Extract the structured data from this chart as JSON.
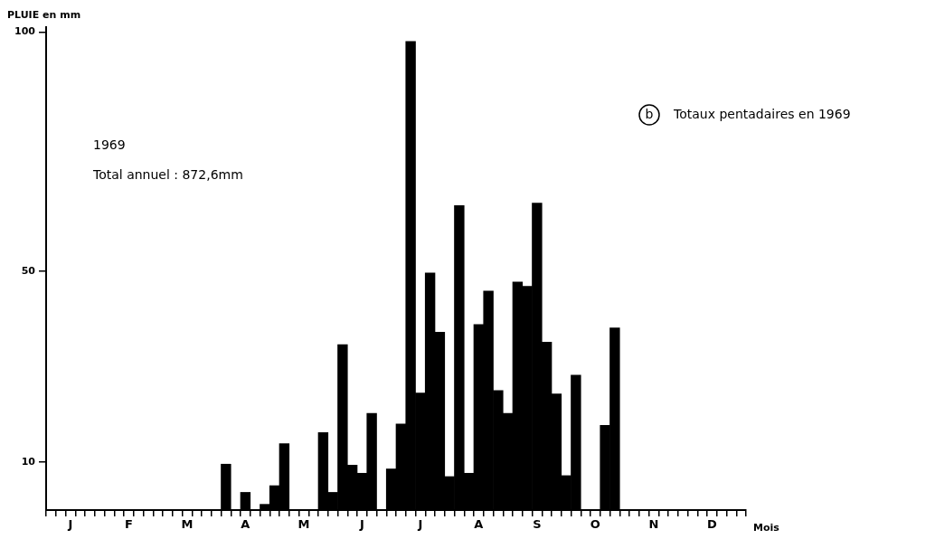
{
  "chart_data": {
    "type": "bar",
    "title": "Totaux pentadaires en 1969",
    "ylabel": "PLUIE en mm",
    "xlabel": "Mois",
    "annotations": [
      "b",
      "1969",
      "Total annuel : 872,6mm"
    ],
    "categories": [
      null,
      null,
      "J",
      null,
      null,
      null,
      null,
      null,
      "F",
      null,
      null,
      null,
      null,
      null,
      "M",
      null,
      null,
      null,
      null,
      null,
      "A",
      null,
      null,
      null,
      null,
      null,
      "M",
      null,
      null,
      null,
      null,
      null,
      "J",
      null,
      null,
      null,
      null,
      null,
      "J",
      null,
      null,
      null,
      null,
      null,
      "A",
      null,
      null,
      null,
      null,
      null,
      "S",
      null,
      null,
      null,
      null,
      null,
      "O",
      null,
      null,
      null,
      null,
      null,
      "N",
      null,
      null,
      null,
      null,
      null,
      "D",
      null,
      null,
      null
    ],
    "values": [
      0,
      0,
      0,
      0,
      0,
      0,
      0,
      0,
      0,
      0,
      0,
      0,
      0,
      0,
      0,
      0,
      0,
      0,
      9.6,
      0,
      3.7,
      0,
      1.2,
      5.1,
      13.9,
      0,
      0,
      0,
      16.2,
      3.7,
      34.6,
      9.4,
      7.7,
      20.2,
      0,
      8.6,
      18,
      98,
      24.5,
      49.6,
      37.2,
      7,
      63.7,
      7.7,
      38.8,
      45.8,
      25,
      20.2,
      47.7,
      46.8,
      64.2,
      35.1,
      24.3,
      7.2,
      28.2,
      0,
      0,
      17.7,
      38.1,
      0,
      0,
      0,
      0,
      0,
      0,
      0,
      0,
      0,
      0,
      0,
      0,
      0
    ],
    "color": "#000000",
    "ylim": [
      0,
      101
    ],
    "yticks": [
      10,
      50,
      100
    ],
    "grid": false,
    "legend": false
  }
}
